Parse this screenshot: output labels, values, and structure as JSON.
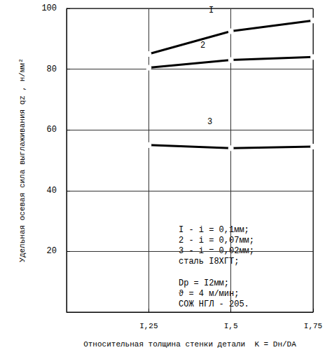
{
  "chart_data": {
    "type": "line",
    "xlabel": "Относительная толщина стенки детали  K = Dн/DА",
    "ylabel": "Удельная осевая сила выглаживания qz , н/мм²",
    "xlim": [
      1.0,
      1.75
    ],
    "xticks": [
      {
        "value": 1.25,
        "label": "I,25"
      },
      {
        "value": 1.5,
        "label": "I,5"
      },
      {
        "value": 1.75,
        "label": "I,75"
      }
    ],
    "ylim": [
      0,
      100
    ],
    "yticks": [
      20,
      40,
      60,
      80,
      100
    ],
    "grid": true,
    "color": "#000000",
    "marker": "open_circle",
    "line_style": "solid",
    "series": [
      {
        "name": "I",
        "color": "#000000",
        "x": [
          1.25,
          1.5,
          1.75
        ],
        "values": [
          85,
          92.5,
          96
        ]
      },
      {
        "name": "2",
        "color": "#000000",
        "x": [
          1.25,
          1.5,
          1.75
        ],
        "values": [
          80.5,
          83,
          84
        ]
      },
      {
        "name": "3",
        "color": "#000000",
        "x": [
          1.25,
          1.5,
          1.75
        ],
        "values": [
          55,
          54,
          54.5
        ]
      }
    ],
    "annotations": [
      {
        "lines": [
          "I - i = 0,1мм;",
          "2 - i = 0,07мм;",
          "3 - i = 0,02мм;",
          "сталь I8ХГТ;"
        ]
      },
      {
        "lines": [
          "Dр = I2мм;",
          "ϑ = 4 м/мин;",
          "СОЖ НГЛ - 205."
        ]
      }
    ]
  }
}
